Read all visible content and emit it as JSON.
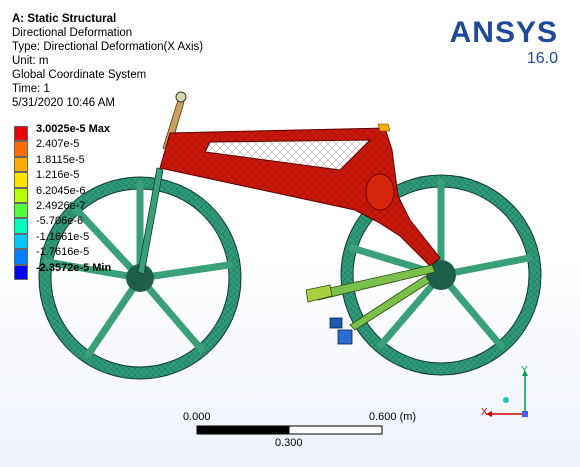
{
  "info": {
    "title": "A: Static Structural",
    "line1": "Directional Deformation",
    "line2": "Type: Directional Deformation(X Axis)",
    "line3": "Unit: m",
    "line4": "Global Coordinate System",
    "line5": "Time: 1",
    "line6": "5/31/2020 10:46 AM"
  },
  "brand": {
    "name": "ANSYS",
    "version": "16.0"
  },
  "legend": {
    "colors": [
      "#e8000b",
      "#ff6b00",
      "#ffaa00",
      "#ffe400",
      "#b6ff00",
      "#50ff3d",
      "#00ffbe",
      "#00c8ff",
      "#0080ff",
      "#0000ff"
    ],
    "labels": [
      {
        "text": "3.0025e-5 Max",
        "bold": true
      },
      {
        "text": "2.407e-5",
        "bold": false
      },
      {
        "text": "1.8115e-5",
        "bold": false
      },
      {
        "text": "1.216e-5",
        "bold": false
      },
      {
        "text": "6.2045e-6",
        "bold": false
      },
      {
        "text": "2.4926e-7",
        "bold": false
      },
      {
        "text": "-5.706e-6",
        "bold": false
      },
      {
        "text": "-1.1661e-5",
        "bold": false
      },
      {
        "text": "-1.7616e-5",
        "bold": false
      },
      {
        "text": "-2.3572e-5 Min",
        "bold": true
      }
    ]
  },
  "scale": {
    "left": "0.000",
    "right": "0.600 (m)",
    "mid": "0.300"
  },
  "triad": {
    "y": "Y",
    "x": "X"
  },
  "colors": {
    "frame": "#c8180c",
    "wheel": "#2f9a7a",
    "spokes": "#3aa07a",
    "brand": "#1f4a9a"
  }
}
